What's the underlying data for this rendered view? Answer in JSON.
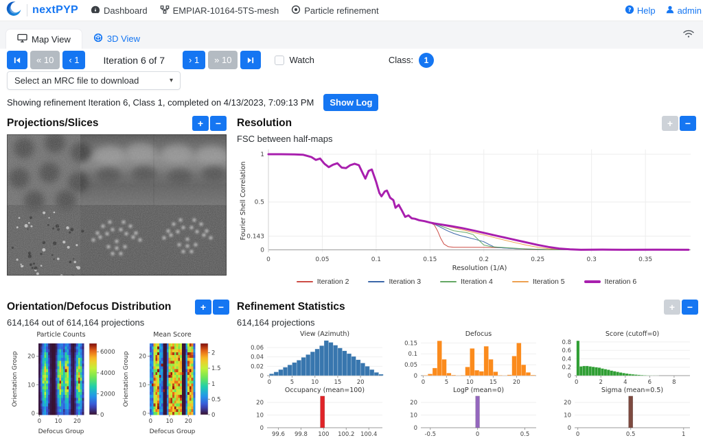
{
  "navbar": {
    "brand": "nextPYP",
    "items": [
      {
        "label": "Dashboard",
        "icon": "dashboard-icon"
      },
      {
        "label": "EMPIAR-10164-5TS-mesh",
        "icon": "project-icon"
      },
      {
        "label": "Particle refinement",
        "icon": "target-icon"
      }
    ],
    "help": "Help",
    "user": "admin"
  },
  "tabs": {
    "map": "Map View",
    "three_d": "3D View"
  },
  "controls": {
    "back10": "« 10",
    "back1": "‹ 1",
    "iteration": "Iteration 6 of 7",
    "fwd1": "› 1",
    "fwd10": "» 10",
    "watch": "Watch",
    "class_label": "Class:",
    "class_value": "1"
  },
  "mrc_select": {
    "value": "Select an MRC file to download"
  },
  "status": {
    "text": "Showing refinement Iteration 6, Class 1, completed on 4/13/2023, 7:09:13 PM",
    "show_log": "Show Log"
  },
  "panels": {
    "projections": {
      "title": "Projections/Slices"
    },
    "resolution": {
      "title": "Resolution",
      "subtitle": "FSC between half-maps"
    },
    "distribution": {
      "title": "Orientation/Defocus Distribution",
      "subtitle": "614,164 out of 614,164 projections"
    },
    "statistics": {
      "title": "Refinement Statistics",
      "subtitle": "614,164 projections"
    }
  },
  "colors": {
    "primary": "#1576f2",
    "disabled": "#b4bbc2"
  },
  "chart_data": [
    {
      "id": "fsc",
      "type": "line",
      "xlabel": "Resolution (1/A)",
      "ylabel": "Fourier Shell Correlation",
      "xlim": [
        0,
        0.392
      ],
      "ylim": [
        -0.025,
        1.05
      ],
      "xticks": [
        0,
        0.05,
        0.1,
        0.15,
        0.2,
        0.25,
        0.3,
        0.35
      ],
      "yticks": [
        0,
        0.143,
        0.5,
        1
      ],
      "legend_position": "bottom",
      "grid": true,
      "common": [
        [
          0,
          1
        ],
        [
          0.012,
          1
        ],
        [
          0.024,
          0.998
        ],
        [
          0.032,
          0.995
        ],
        [
          0.04,
          0.97
        ],
        [
          0.044,
          0.94
        ],
        [
          0.048,
          0.955
        ],
        [
          0.052,
          0.9
        ],
        [
          0.056,
          0.865
        ],
        [
          0.06,
          0.89
        ],
        [
          0.064,
          0.905
        ],
        [
          0.068,
          0.86
        ],
        [
          0.072,
          0.855
        ],
        [
          0.076,
          0.885
        ],
        [
          0.08,
          0.9
        ],
        [
          0.084,
          0.885
        ],
        [
          0.088,
          0.79
        ],
        [
          0.09,
          0.745
        ],
        [
          0.093,
          0.825
        ],
        [
          0.096,
          0.84
        ],
        [
          0.1,
          0.71
        ],
        [
          0.103,
          0.595
        ],
        [
          0.105,
          0.56
        ],
        [
          0.108,
          0.61
        ],
        [
          0.11,
          0.62
        ],
        [
          0.113,
          0.545
        ],
        [
          0.116,
          0.52
        ],
        [
          0.118,
          0.44
        ],
        [
          0.121,
          0.47
        ],
        [
          0.124,
          0.41
        ],
        [
          0.127,
          0.345
        ],
        [
          0.13,
          0.36
        ],
        [
          0.133,
          0.33
        ],
        [
          0.136,
          0.325
        ],
        [
          0.14,
          0.31
        ],
        [
          0.145,
          0.3
        ],
        [
          0.15,
          0.285
        ]
      ],
      "series": [
        {
          "name": "Iteration 2",
          "color": "#cc4b44",
          "width": 1,
          "tail": [
            [
              0.154,
              0.26
            ],
            [
              0.157,
              0.2
            ],
            [
              0.16,
              0.12
            ],
            [
              0.163,
              0.06
            ],
            [
              0.167,
              0.033
            ],
            [
              0.172,
              0.027
            ],
            [
              0.18,
              0.027
            ],
            [
              0.2,
              0.026
            ],
            [
              0.215,
              0.022
            ],
            [
              0.23,
              0.012
            ],
            [
              0.245,
              0.005
            ],
            [
              0.26,
              0.002
            ],
            [
              0.3,
              0.001
            ],
            [
              0.39,
              0.001
            ]
          ]
        },
        {
          "name": "Iteration 3",
          "color": "#3a66a8",
          "width": 1,
          "tail": [
            [
              0.154,
              0.268
            ],
            [
              0.16,
              0.235
            ],
            [
              0.166,
              0.2
            ],
            [
              0.172,
              0.172
            ],
            [
              0.178,
              0.15
            ],
            [
              0.185,
              0.13
            ],
            [
              0.192,
              0.11
            ],
            [
              0.2,
              0.085
            ],
            [
              0.205,
              0.055
            ],
            [
              0.21,
              0.028
            ],
            [
              0.218,
              0.02
            ],
            [
              0.23,
              0.013
            ],
            [
              0.25,
              0.006
            ],
            [
              0.27,
              0.002
            ],
            [
              0.3,
              0.001
            ],
            [
              0.39,
              0.001
            ]
          ]
        },
        {
          "name": "Iteration 4",
          "color": "#63a763",
          "width": 1,
          "tail": [
            [
              0.154,
              0.272
            ],
            [
              0.16,
              0.25
            ],
            [
              0.166,
              0.225
            ],
            [
              0.172,
              0.2
            ],
            [
              0.178,
              0.19
            ],
            [
              0.184,
              0.18
            ],
            [
              0.19,
              0.16
            ],
            [
              0.195,
              0.105
            ],
            [
              0.2,
              0.05
            ],
            [
              0.207,
              0.033
            ],
            [
              0.215,
              0.027
            ],
            [
              0.225,
              0.02
            ],
            [
              0.24,
              0.01
            ],
            [
              0.26,
              0.004
            ],
            [
              0.28,
              0.001
            ],
            [
              0.39,
              0.001
            ]
          ]
        },
        {
          "name": "Iteration 5",
          "color": "#eda04f",
          "width": 1,
          "tail": [
            [
              0.154,
              0.273
            ],
            [
              0.162,
              0.256
            ],
            [
              0.17,
              0.235
            ],
            [
              0.18,
              0.21
            ],
            [
              0.19,
              0.183
            ],
            [
              0.2,
              0.156
            ],
            [
              0.21,
              0.128
            ],
            [
              0.22,
              0.1
            ],
            [
              0.23,
              0.073
            ],
            [
              0.24,
              0.048
            ],
            [
              0.25,
              0.027
            ],
            [
              0.26,
              0.013
            ],
            [
              0.272,
              0.005
            ],
            [
              0.285,
              0.002
            ],
            [
              0.3,
              0.001
            ],
            [
              0.39,
              0.001
            ]
          ]
        },
        {
          "name": "Iteration 6",
          "color": "#a81fae",
          "width": 3,
          "tail": [
            [
              0.154,
              0.276
            ],
            [
              0.162,
              0.262
            ],
            [
              0.17,
              0.247
            ],
            [
              0.18,
              0.227
            ],
            [
              0.19,
              0.203
            ],
            [
              0.2,
              0.178
            ],
            [
              0.21,
              0.152
            ],
            [
              0.22,
              0.127
            ],
            [
              0.23,
              0.102
            ],
            [
              0.24,
              0.077
            ],
            [
              0.25,
              0.052
            ],
            [
              0.26,
              0.03
            ],
            [
              0.27,
              0.014
            ],
            [
              0.28,
              0.005
            ],
            [
              0.29,
              0.001
            ],
            [
              0.31,
              0.003
            ],
            [
              0.33,
              0.001
            ],
            [
              0.36,
              0.002
            ],
            [
              0.39,
              0.001
            ]
          ]
        }
      ]
    },
    {
      "id": "particle_counts",
      "type": "heatmap",
      "mode": "counts",
      "title": "Particle Counts",
      "xlabel": "Defocus Group",
      "ylabel": "Orientation Group",
      "nx": 24,
      "ny": 25,
      "xticks": [
        0,
        10,
        20
      ],
      "yticks": [
        0,
        10,
        20
      ],
      "colorbar_ticks": [
        0,
        2000,
        4000,
        6000
      ],
      "vmax": 6800,
      "seed": 7,
      "stripes": [
        {
          "center": 3,
          "width": 1.7
        },
        {
          "center": 11,
          "width": 1.5
        },
        {
          "center": 14.5,
          "width": 1.6
        },
        {
          "center": 21,
          "width": 1.6
        }
      ],
      "pattern": "high particle counts in vertical bands at defocus groups ~3, 11, 14.5 and 21, peaking ~6800 near middle orientation groups; near zero elsewhere"
    },
    {
      "id": "mean_score",
      "type": "heatmap",
      "mode": "score",
      "title": "Mean Score",
      "xlabel": "Defocus Group",
      "ylabel": "Orientation Group",
      "nx": 24,
      "ny": 25,
      "xticks": [
        0,
        10,
        20
      ],
      "yticks": [
        0,
        10,
        20
      ],
      "colorbar_ticks": [
        0,
        0.5,
        1,
        1.5,
        2
      ],
      "vmax": 2.3,
      "seed": 99,
      "stripes": [
        {
          "center": 3,
          "width": 1.7
        },
        {
          "center": 11,
          "width": 1.5
        },
        {
          "center": 14.5,
          "width": 1.6
        },
        {
          "center": 21,
          "width": 1.6
        }
      ],
      "empty_columns": [
        7,
        8,
        17,
        18
      ],
      "pattern": "mean score ~0.3-0.8 (blue) for most groups, ~1.2-2.3 (green-red) in the populated defocus bands, ~0 (dark) in empty defocus columns"
    },
    {
      "id": "view_azimuth",
      "type": "hist",
      "title": "View (Azimuth)",
      "color": "#3876ae",
      "xlim": [
        -0.5,
        24.8
      ],
      "ymax": 0.079,
      "xticks": [
        0,
        5,
        10,
        15,
        20
      ],
      "yticks": [
        0,
        0.02,
        0.04,
        0.06
      ],
      "bins": {
        "x0": 0,
        "dx": 1,
        "values": [
          0.004,
          0.008,
          0.013,
          0.018,
          0.023,
          0.028,
          0.033,
          0.039,
          0.045,
          0.051,
          0.057,
          0.064,
          0.075,
          0.071,
          0.065,
          0.059,
          0.053,
          0.047,
          0.041,
          0.034,
          0.027,
          0.02,
          0.013,
          0.007,
          0.003
        ]
      }
    },
    {
      "id": "defocus",
      "type": "hist",
      "title": "Defocus",
      "color": "#fb8b1d",
      "xlim": [
        -0.5,
        24.2
      ],
      "ymax": 0.17,
      "xticks": [
        0,
        5,
        10,
        15,
        20
      ],
      "yticks": [
        0,
        0.05,
        0.1,
        0.15
      ],
      "bins": {
        "x0": 0,
        "dx": 1,
        "values": [
          0.002,
          0.008,
          0.035,
          0.16,
          0.075,
          0.012,
          0.003,
          0.001,
          0.002,
          0.04,
          0.125,
          0.025,
          0.02,
          0.135,
          0.075,
          0.018,
          0.002,
          0.001,
          0.004,
          0.09,
          0.15,
          0.05,
          0.015,
          0.003
        ]
      }
    },
    {
      "id": "score",
      "type": "hist",
      "title": "Score (cutoff=0)",
      "color": "#2f9e33",
      "xlim": [
        -0.15,
        9.3
      ],
      "ymax": 0.88,
      "xticks": [
        0,
        2,
        4,
        6,
        8
      ],
      "yticks": [
        0,
        0.2,
        0.4,
        0.6,
        0.8
      ],
      "bins": {
        "x0": 0,
        "dx": 0.25,
        "values": [
          0.83,
          0.22,
          0.23,
          0.23,
          0.22,
          0.21,
          0.2,
          0.19,
          0.17,
          0.155,
          0.14,
          0.12,
          0.105,
          0.09,
          0.075,
          0.062,
          0.05,
          0.04,
          0.032,
          0.025,
          0.019,
          0.014,
          0.01,
          0.007,
          0.005,
          0.003,
          0.002
        ]
      }
    },
    {
      "id": "occupancy",
      "type": "hist",
      "title": "Occupancy (mean=100)",
      "color": "#e02428",
      "xlim": [
        99.5,
        100.52
      ],
      "ymax": 26,
      "xticks": [
        99.6,
        99.8,
        100,
        100.2,
        100.4
      ],
      "yticks": [
        0,
        10,
        20
      ],
      "bars": [
        {
          "x": 99.99,
          "width": 0.038,
          "value": 25
        }
      ]
    },
    {
      "id": "logp",
      "type": "hist",
      "title": "LogP (mean=0)",
      "color": "#9467bd",
      "xlim": [
        -0.6,
        0.62
      ],
      "ymax": 26,
      "xticks": [
        -0.5,
        0,
        0.5
      ],
      "yticks": [
        0,
        10,
        20
      ],
      "bars": [
        {
          "x": 0,
          "width": 0.042,
          "value": 25
        }
      ]
    },
    {
      "id": "sigma",
      "type": "hist",
      "title": "Sigma (mean=0.5)",
      "color": "#7d4a40",
      "xlim": [
        -0.03,
        1.06
      ],
      "ymax": 26,
      "xticks": [
        0,
        0.5,
        1
      ],
      "yticks": [
        0,
        10,
        20
      ],
      "bars": [
        {
          "x": 0.5,
          "width": 0.04,
          "value": 25
        }
      ]
    }
  ]
}
